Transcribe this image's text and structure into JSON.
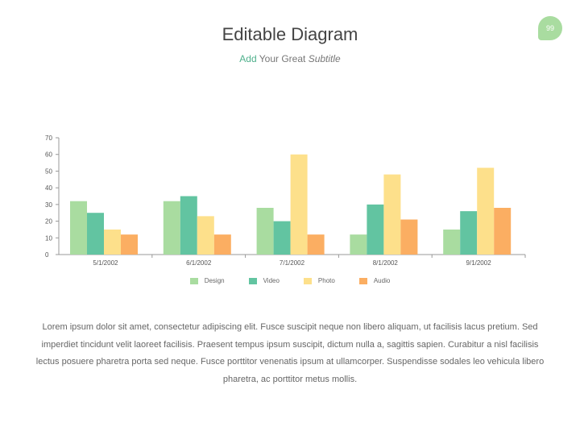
{
  "page_number": "99",
  "header": {
    "title": "Editable Diagram",
    "subtitle_accent": "Add",
    "subtitle_middle": "Your Great",
    "subtitle_italic": "Subtitle"
  },
  "colors": {
    "Design": "#a9dca0",
    "Video": "#62c4a1",
    "Photo": "#fde08b",
    "Audio": "#fbae62",
    "badge": "#a9dca0",
    "accent": "#4fb08c"
  },
  "chart_data": {
    "type": "bar",
    "categories": [
      "5/1/2002",
      "6/1/2002",
      "7/1/2002",
      "8/1/2002",
      "9/1/2002"
    ],
    "series": [
      {
        "name": "Design",
        "values": [
          32,
          32,
          28,
          12,
          15
        ]
      },
      {
        "name": "Video",
        "values": [
          25,
          35,
          20,
          30,
          26
        ]
      },
      {
        "name": "Photo",
        "values": [
          15,
          23,
          60,
          48,
          52
        ]
      },
      {
        "name": "Audio",
        "values": [
          12,
          12,
          12,
          21,
          28
        ]
      }
    ],
    "yticks": [
      "0",
      "10",
      "20",
      "30",
      "40",
      "50",
      "60",
      "70"
    ],
    "ylim": [
      0,
      70
    ],
    "legend_position": "bottom",
    "grid": false
  },
  "body_text": "Lorem ipsum dolor sit amet, consectetur adipiscing elit. Fusce suscipit neque non libero aliquam, ut facilisis lacus pretium. Sed imperdiet tincidunt velit laoreet facilisis. Praesent tempus ipsum suscipit, dictum nulla a, sagittis sapien. Curabitur a nisl facilisis lectus posuere pharetra porta sed neque. Fusce porttitor venenatis ipsum at ullamcorper. Suspendisse sodales leo vehicula libero pharetra, ac porttitor metus mollis."
}
